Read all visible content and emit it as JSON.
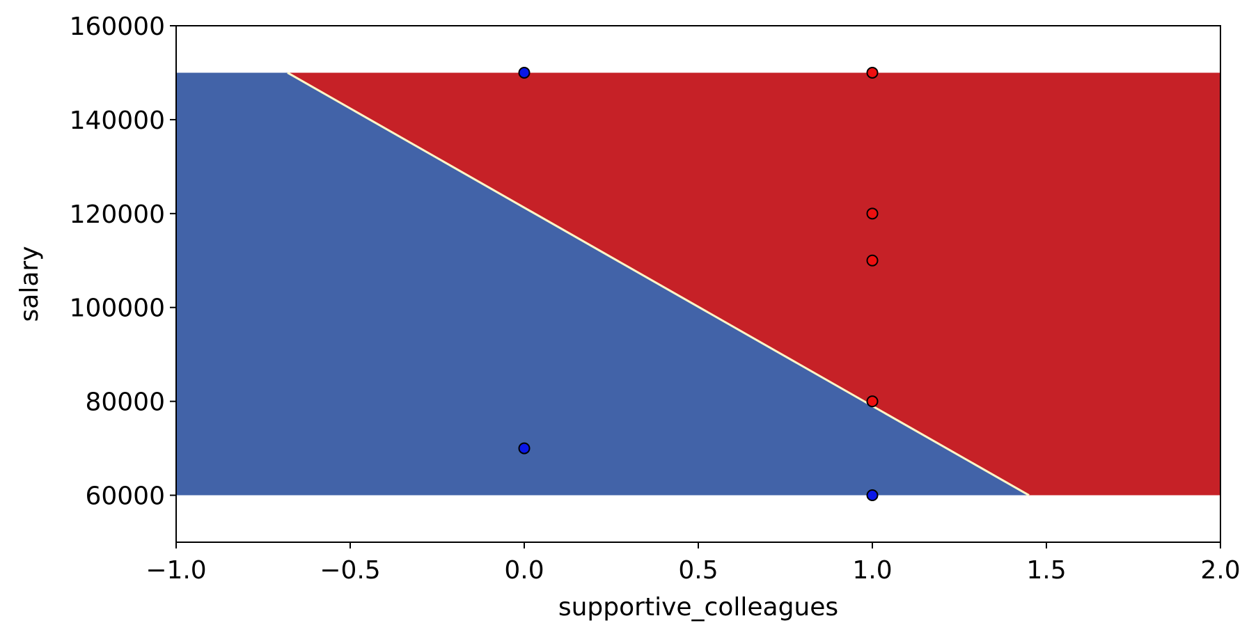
{
  "chart_data": {
    "type": "scatter",
    "title": "",
    "xlabel": "supportive_colleagues",
    "ylabel": "salary",
    "xlim": [
      -1.0,
      2.0
    ],
    "ylim": [
      50000,
      160000
    ],
    "xticks": [
      -1.0,
      -0.5,
      0.0,
      0.5,
      1.0,
      1.5,
      2.0
    ],
    "xtick_labels": [
      "−1.0",
      "−0.5",
      "0.0",
      "0.5",
      "1.0",
      "1.5",
      "2.0"
    ],
    "yticks": [
      60000,
      80000,
      100000,
      120000,
      140000,
      160000
    ],
    "ytick_labels": [
      "60000",
      "80000",
      "100000",
      "120000",
      "140000",
      "160000"
    ],
    "grid": false,
    "decision_region": {
      "x_range": [
        -1.0,
        2.0
      ],
      "y_range": [
        60000,
        150000
      ],
      "boundary": [
        {
          "x": -0.68,
          "y": 150000
        },
        {
          "x": 1.45,
          "y": 60000
        }
      ],
      "below_color": "#4263a8",
      "above_color": "#c62127",
      "boundary_color": "#fff7c8"
    },
    "points": [
      {
        "x": 0,
        "y": 150000,
        "class": "blue",
        "color": "#0a17e8"
      },
      {
        "x": 0,
        "y": 70000,
        "class": "blue",
        "color": "#0a17e8"
      },
      {
        "x": 1,
        "y": 60000,
        "class": "blue",
        "color": "#0a17e8"
      },
      {
        "x": 1,
        "y": 150000,
        "class": "red",
        "color": "#ee1010"
      },
      {
        "x": 1,
        "y": 120000,
        "class": "red",
        "color": "#ee1010"
      },
      {
        "x": 1,
        "y": 110000,
        "class": "red",
        "color": "#ee1010"
      },
      {
        "x": 1,
        "y": 80000,
        "class": "red",
        "color": "#ee1010"
      }
    ]
  }
}
